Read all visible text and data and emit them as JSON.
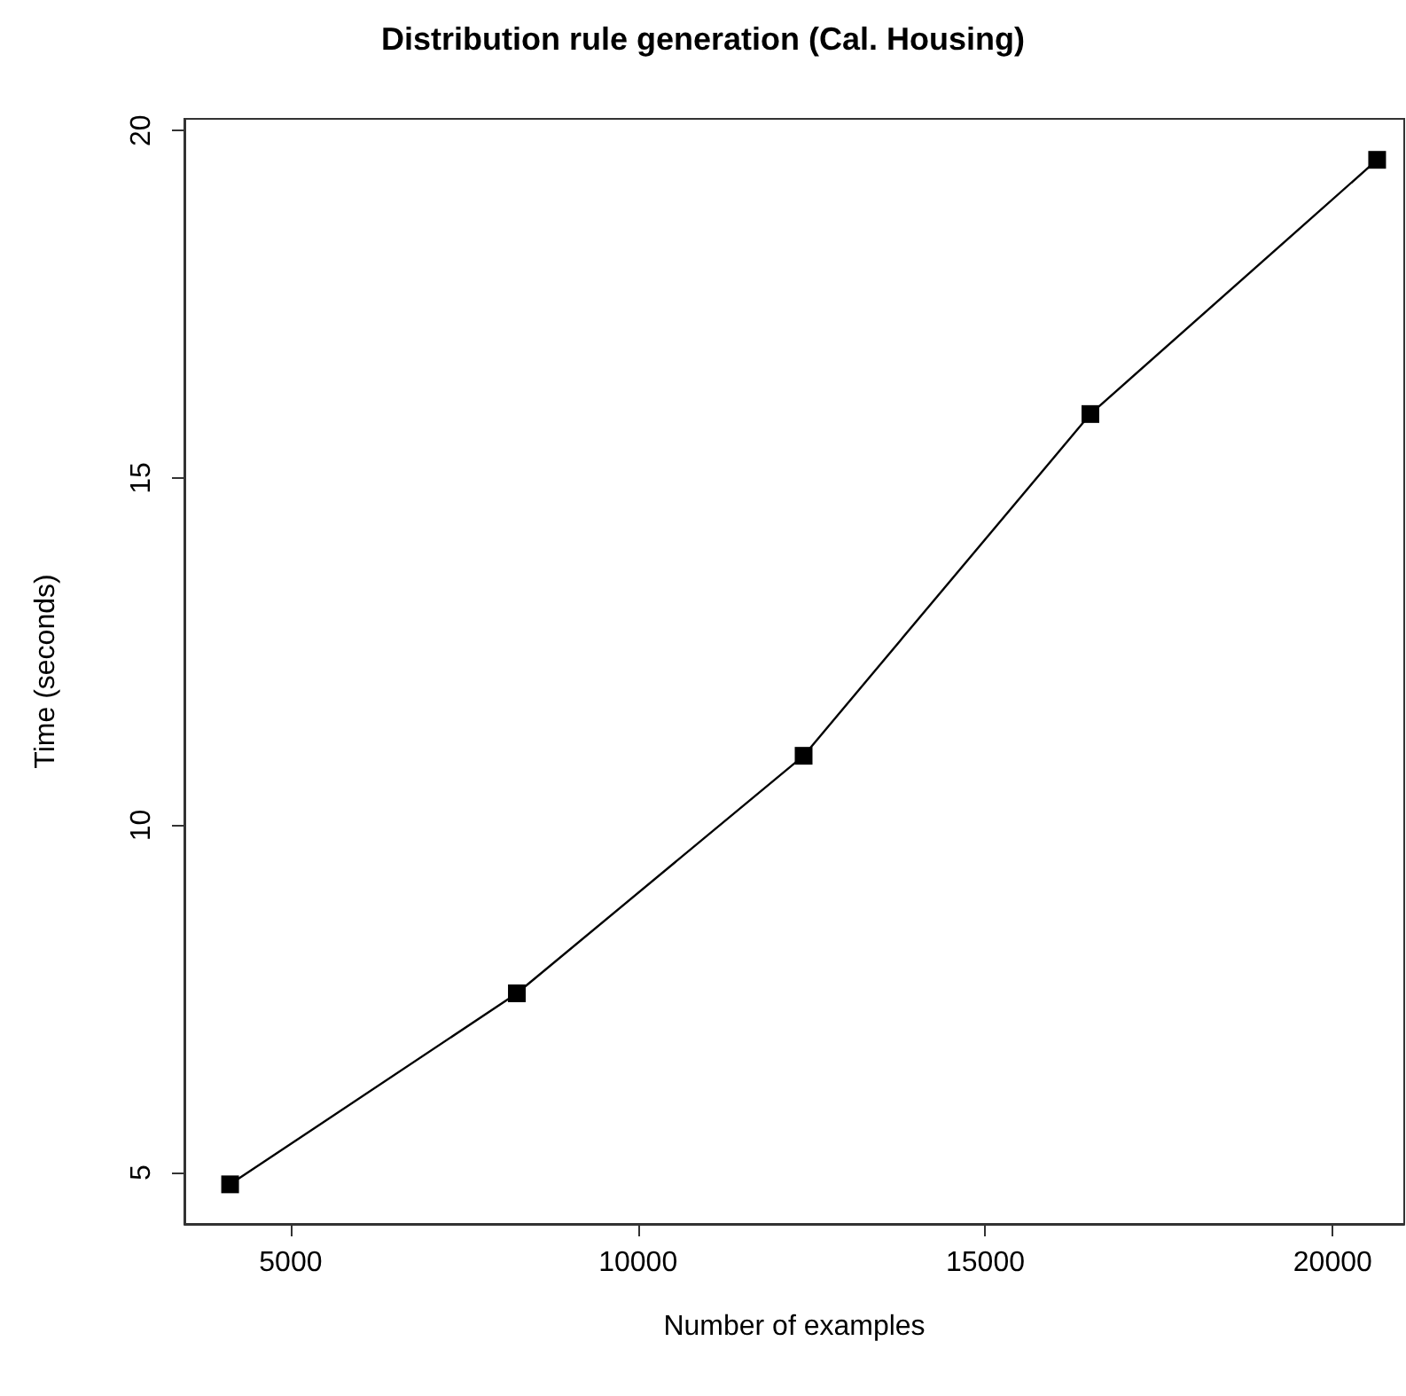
{
  "chart_data": {
    "type": "line",
    "title": "Distribution rule generation (Cal. Housing)",
    "xlabel": "Number of examples",
    "ylabel": "Time (seconds)",
    "x": [
      4128,
      8256,
      12384,
      16512,
      20640
    ],
    "series": [
      {
        "color": "#000000",
        "values": [
          4.83,
          7.58,
          11.0,
          15.92,
          19.58
        ]
      }
    ],
    "xlim": [
      3470,
      21030
    ],
    "xticks": [
      5000,
      10000,
      15000,
      20000
    ],
    "ylim": [
      4.26,
      20.17
    ],
    "yticks": [
      5,
      10,
      15,
      20
    ],
    "marker": "square",
    "line_style": "solid"
  }
}
